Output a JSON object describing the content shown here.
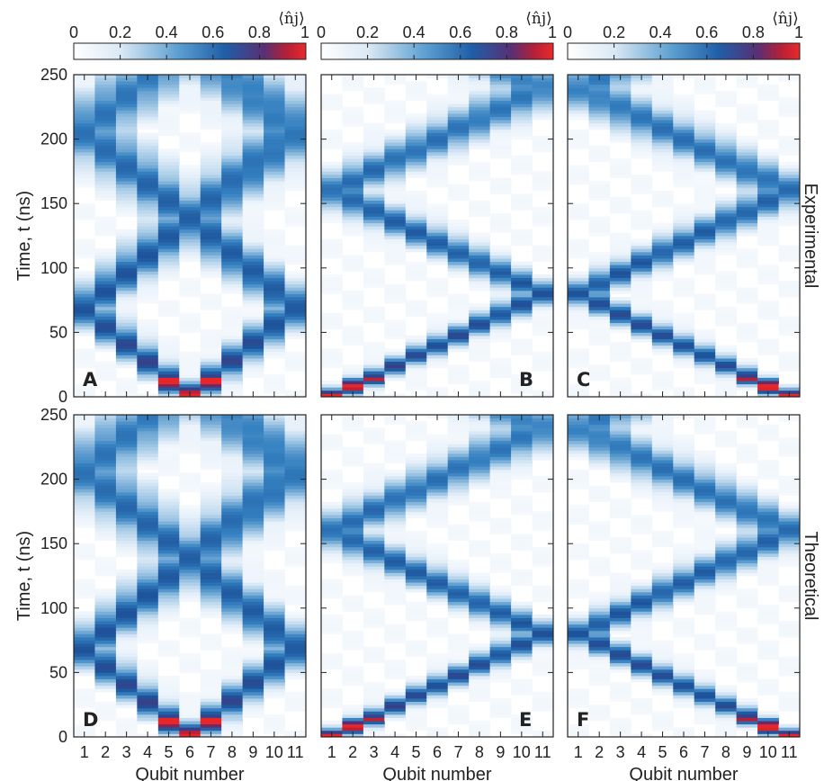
{
  "chart_data": {
    "type": "heatmap",
    "colorbar": {
      "label": "⟨n̂j⟩",
      "ticks": [
        0,
        0.2,
        0.4,
        0.6,
        0.8,
        1
      ],
      "tick_labels": [
        "0",
        "0.2",
        "0.4",
        "0.6",
        "0.8",
        "1"
      ],
      "range": [
        0,
        1
      ],
      "colors": [
        "#ffffff",
        "#9dc4e2",
        "#2f7fc1",
        "#1e4f93",
        "#a01f3a",
        "#e8262a"
      ]
    },
    "x_axis": {
      "label": "Qubit number",
      "categories": [
        "1",
        "2",
        "3",
        "4",
        "5",
        "6",
        "7",
        "8",
        "9",
        "10",
        "11"
      ]
    },
    "y_axis": {
      "label": "Time, t (ns)",
      "range": [
        0,
        250
      ],
      "ticks": [
        0,
        50,
        100,
        150,
        200,
        250
      ],
      "tick_labels": [
        "0",
        "50",
        "100",
        "150",
        "200",
        "250"
      ]
    },
    "row_labels": [
      "Experimental",
      "Theoretical"
    ],
    "panels": [
      {
        "id": "A",
        "row": "Experimental",
        "initial_qubit": 6,
        "speed_ns_per_site": 13.8,
        "bounce": true
      },
      {
        "id": "B",
        "row": "Experimental",
        "initial_qubit": 1,
        "speed_ns_per_site": 8.0,
        "bounce": true
      },
      {
        "id": "C",
        "row": "Experimental",
        "initial_qubit": 11,
        "speed_ns_per_site": 8.0,
        "bounce": true
      },
      {
        "id": "D",
        "row": "Theoretical",
        "initial_qubit": 6,
        "speed_ns_per_site": 13.8,
        "bounce": true
      },
      {
        "id": "E",
        "row": "Theoretical",
        "initial_qubit": 1,
        "speed_ns_per_site": 8.0,
        "bounce": true
      },
      {
        "id": "F",
        "row": "Theoretical",
        "initial_qubit": 11,
        "speed_ns_per_site": 8.0,
        "bounce": true
      }
    ]
  }
}
